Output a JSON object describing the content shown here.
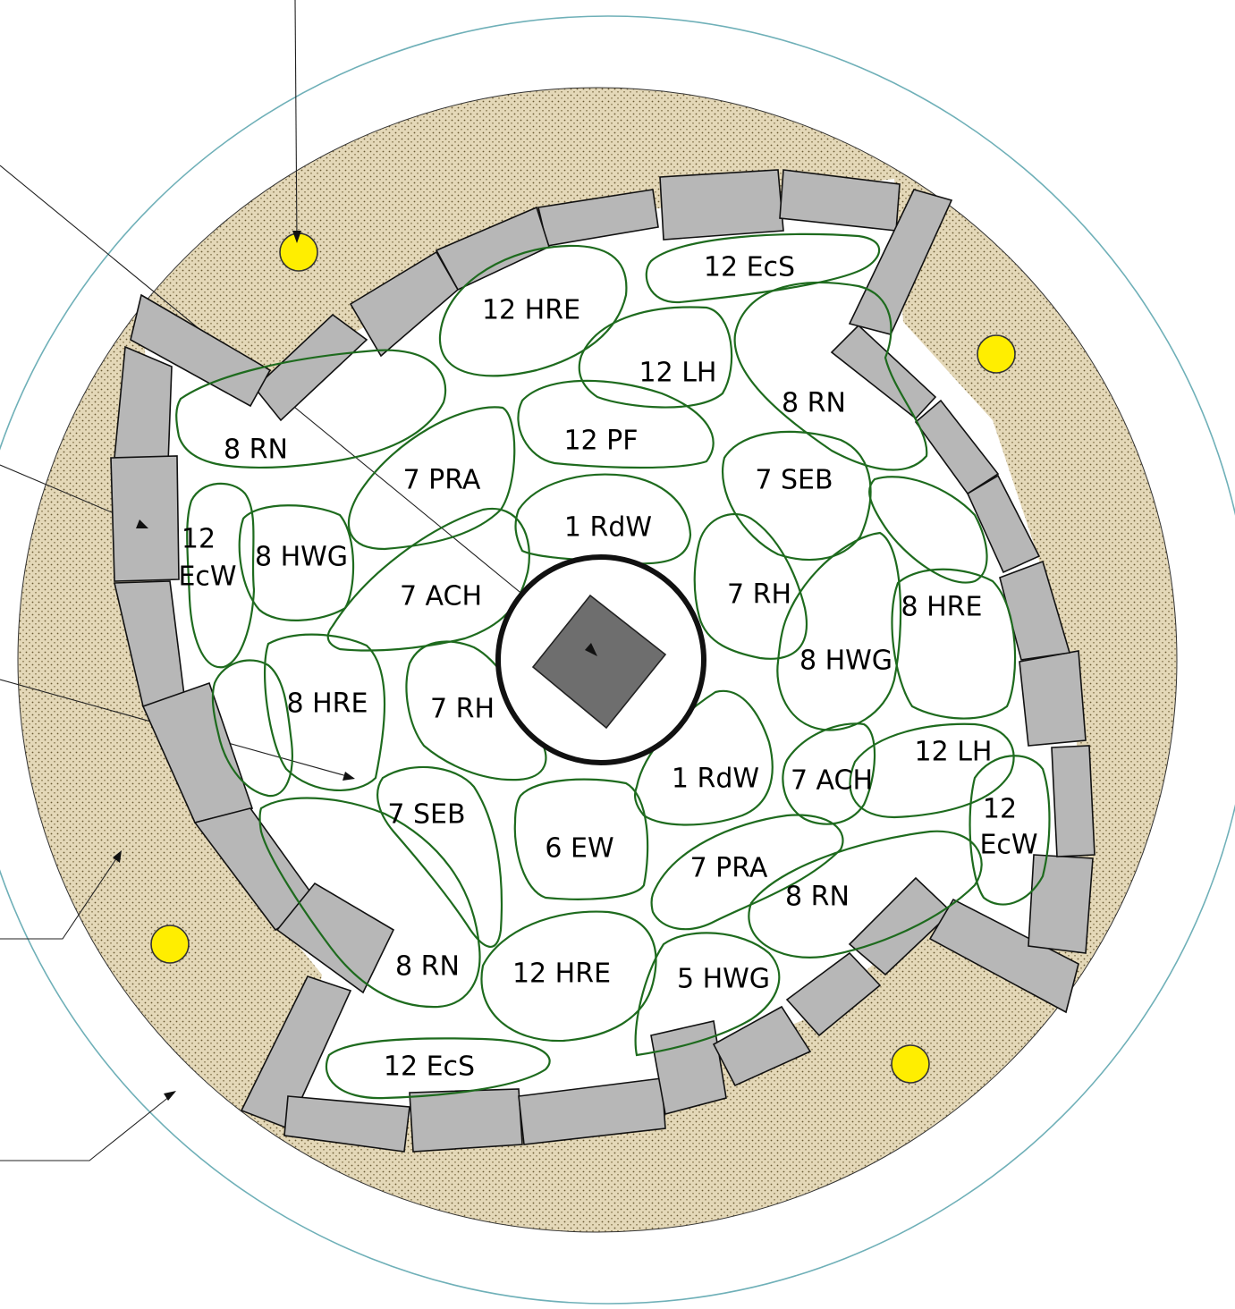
{
  "colors": {
    "outer_ring": "#6fb0b8",
    "gravel": "#d8c9a4",
    "gravel_dots": "#6a5a33",
    "stone_wall": "#b7b7b7",
    "plant_drift_outline": "#1e6b1e",
    "boulder": "#ffee00",
    "center_ring": "#111111",
    "center_square": "#6e6e6e"
  },
  "beds": [
    {
      "label": "12  EcS"
    },
    {
      "label": "12 HRE"
    },
    {
      "label": "12  LH"
    },
    {
      "label": "8 RN"
    },
    {
      "label": "8 RN"
    },
    {
      "label": "12 PF"
    },
    {
      "label": "7 PRA"
    },
    {
      "label": "7 SEB"
    },
    {
      "label": "1 RdW"
    },
    {
      "label": "12"
    },
    {
      "label": "EcW"
    },
    {
      "label": "8 HWG"
    },
    {
      "label": "7 ACH"
    },
    {
      "label": "7 RH"
    },
    {
      "label": "8 HRE"
    },
    {
      "label": "8 HWG"
    },
    {
      "label": "8 HRE"
    },
    {
      "label": "7 RH"
    },
    {
      "label": "12 LH"
    },
    {
      "label": "1 RdW"
    },
    {
      "label": "7 ACH"
    },
    {
      "label": "12"
    },
    {
      "label": "EcW"
    },
    {
      "label": "7 SEB"
    },
    {
      "label": "6 EW"
    },
    {
      "label": "7 PRA"
    },
    {
      "label": "8 RN"
    },
    {
      "label": "8 RN"
    },
    {
      "label": "12 HRE"
    },
    {
      "label": "5 HWG"
    },
    {
      "label": "12  EcS"
    }
  ]
}
